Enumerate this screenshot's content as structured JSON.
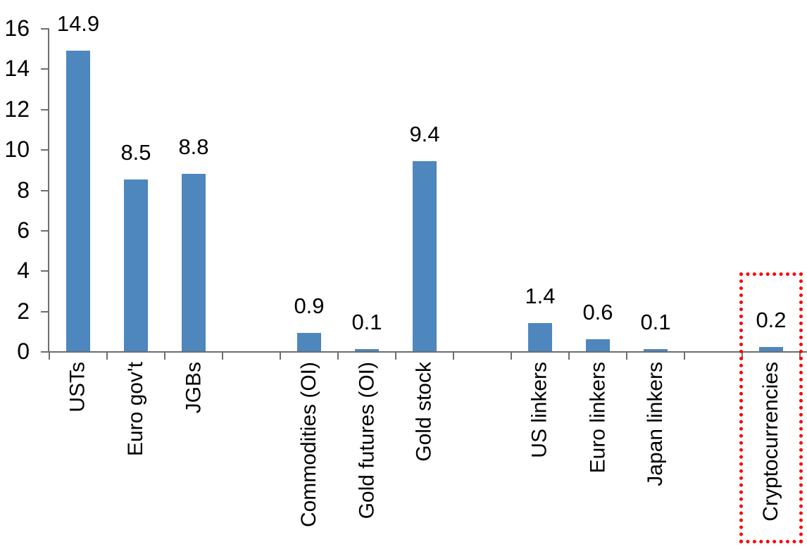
{
  "chart_data": {
    "type": "bar",
    "title": "",
    "xlabel": "",
    "ylabel": "",
    "categories": [
      "USTs",
      "Euro gov't",
      "JGBs",
      "",
      "Commodities (OI)",
      "Gold futures (OI)",
      "Gold stock",
      "",
      "US linkers",
      "Euro linkers",
      "Japan linkers",
      "",
      "Cryptocurrencies"
    ],
    "values": [
      14.9,
      8.5,
      8.8,
      null,
      0.9,
      0.1,
      9.4,
      null,
      1.4,
      0.6,
      0.1,
      null,
      0.2
    ],
    "data_labels": [
      "14.9",
      "8.5",
      "8.8",
      null,
      "0.9",
      "0.1",
      "9.4",
      null,
      "1.4",
      "0.6",
      "0.1",
      null,
      "0.2"
    ],
    "ylim": [
      0,
      16
    ],
    "ytick_values": [
      0,
      2,
      4,
      6,
      8,
      10,
      12,
      14,
      16
    ],
    "ytick_labels": [
      "0",
      "2",
      "4",
      "6",
      "8",
      "10",
      "12",
      "14",
      "16"
    ],
    "grid": false,
    "legend": null,
    "bar_color": "#4E86BE",
    "axis_color": "#6E6E6E",
    "text_color": "#000000",
    "highlight": {
      "label": "Cryptocurrencies",
      "category_index": 12,
      "box_color": "#FF0000",
      "box_style": "dotted"
    }
  }
}
